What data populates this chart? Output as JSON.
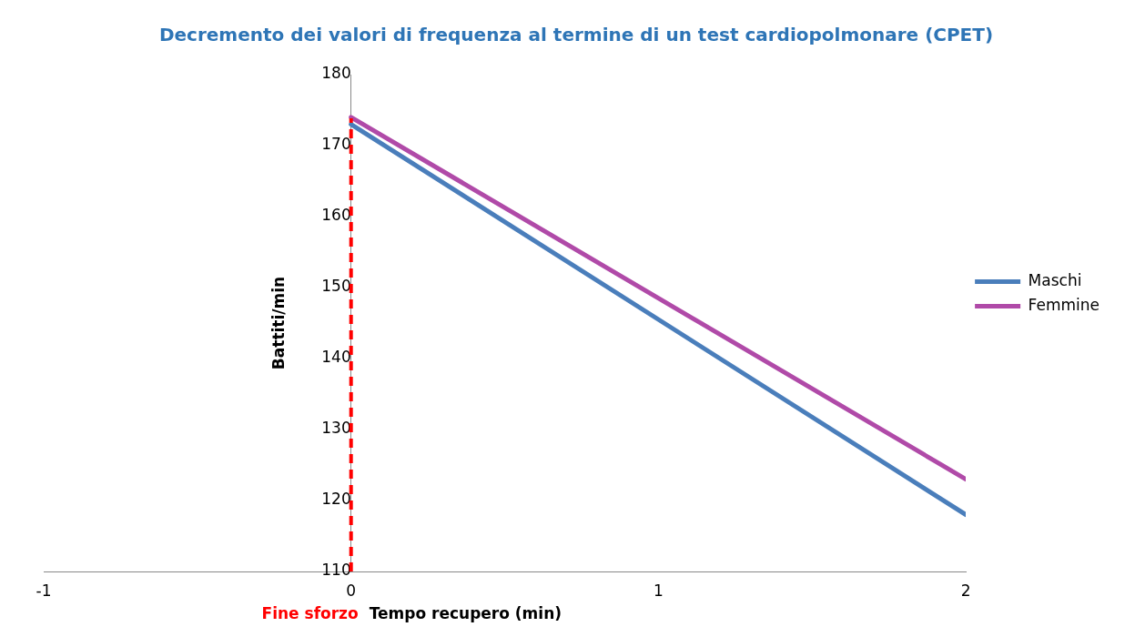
{
  "chart_data": {
    "type": "line",
    "title": "Decremento dei valori di frequenza al termine di un test cardiopolmonare (CPET)",
    "xlabel": "Tempo recupero (min)",
    "ylabel": "Battiti/min",
    "x": [
      0,
      2
    ],
    "series": [
      {
        "name": "Maschi",
        "color": "#4a7ebb",
        "values": [
          173,
          118
        ]
      },
      {
        "name": "Femmine",
        "color": "#b04aa8",
        "values": [
          174,
          123
        ]
      }
    ],
    "xlim": [
      -1,
      2
    ],
    "xticks": [
      -1,
      0,
      1,
      2
    ],
    "ylim": [
      110,
      180
    ],
    "yticks": [
      110,
      120,
      130,
      140,
      150,
      160,
      170,
      180
    ],
    "ref_lines": [
      {
        "axis": "x",
        "value": 0,
        "label": "Fine sforzo",
        "color": "#ff0000",
        "line_style": "dashed"
      }
    ],
    "grid": false,
    "legend": "right",
    "marker": "none",
    "line_style": "solid"
  }
}
